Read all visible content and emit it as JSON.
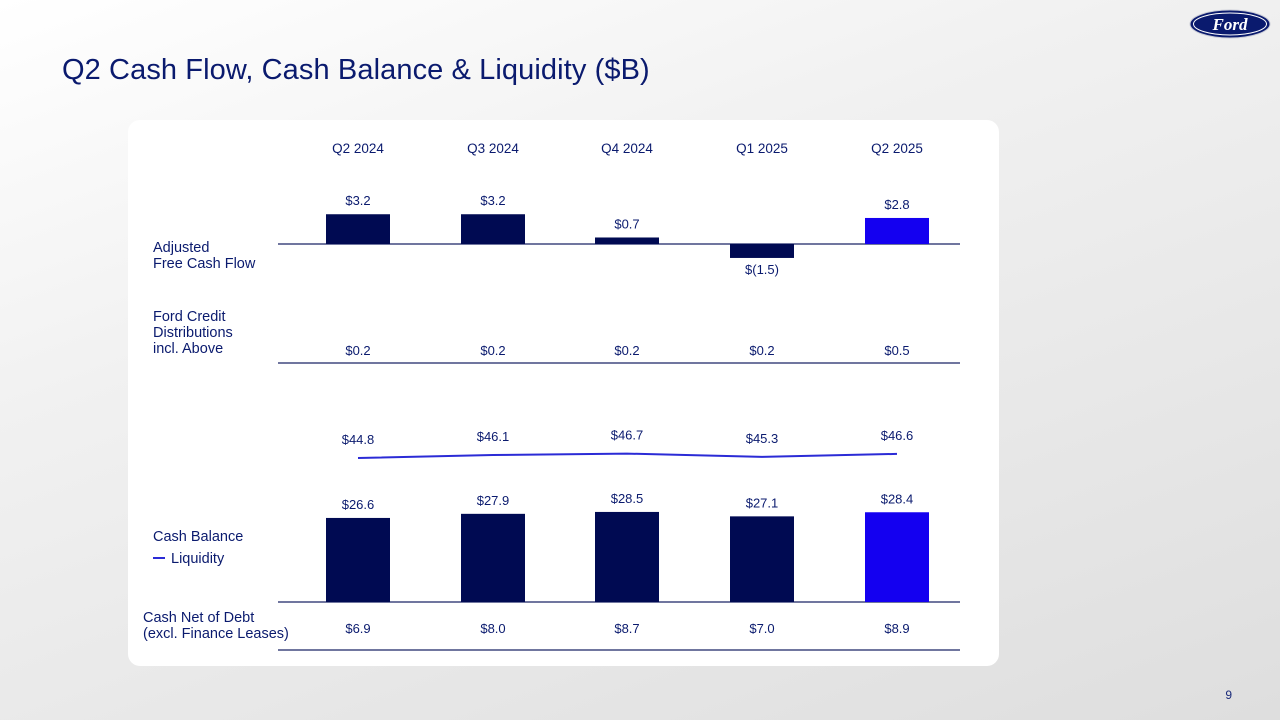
{
  "title": "Q2 Cash Flow, Cash Balance & Liquidity ($B)",
  "brand": {
    "logo_text": "Ford",
    "color": "#0a1a6e"
  },
  "page_number": "9",
  "row_labels": {
    "adj_fcf_line1": "Adjusted",
    "adj_fcf_line2": "Free Cash Flow",
    "ford_credit_line1": "Ford Credit",
    "ford_credit_line2": "Distributions",
    "ford_credit_line3": "incl. Above",
    "cash_balance": "Cash Balance",
    "liquidity": "Liquidity",
    "cash_net_line1": "Cash Net of Debt",
    "cash_net_line2": "(excl. Finance Leases)"
  },
  "colors": {
    "dark_bar": "#000a52",
    "highlight_bar": "#1400f0",
    "liquidity_line": "#2b2bd6",
    "text": "#0a1a6e",
    "axis": "#1a2466"
  },
  "chart_data": {
    "type": "bar",
    "categories": [
      "Q2 2024",
      "Q3 2024",
      "Q4 2024",
      "Q1 2025",
      "Q2 2025"
    ],
    "highlight_index": 4,
    "adjusted_free_cash_flow": {
      "values": [
        3.2,
        3.2,
        0.7,
        -1.5,
        2.8
      ],
      "labels": [
        "$3.2",
        "$3.2",
        "$0.7",
        "$(1.5)",
        "$2.8"
      ]
    },
    "ford_credit_distributions": {
      "values": [
        0.2,
        0.2,
        0.2,
        0.2,
        0.5
      ],
      "labels": [
        "$0.2",
        "$0.2",
        "$0.2",
        "$0.2",
        "$0.5"
      ]
    },
    "liquidity": {
      "values": [
        44.8,
        46.1,
        46.7,
        45.3,
        46.6
      ],
      "labels": [
        "$44.8",
        "$46.1",
        "$46.7",
        "$45.3",
        "$46.6"
      ]
    },
    "cash_balance": {
      "values": [
        26.6,
        27.9,
        28.5,
        27.1,
        28.4
      ],
      "labels": [
        "$26.6",
        "$27.9",
        "$28.5",
        "$27.1",
        "$28.4"
      ]
    },
    "cash_net_of_debt": {
      "values": [
        6.9,
        8.0,
        8.7,
        7.0,
        8.9
      ],
      "labels": [
        "$6.9",
        "$8.0",
        "$8.7",
        "$7.0",
        "$8.9"
      ]
    }
  }
}
